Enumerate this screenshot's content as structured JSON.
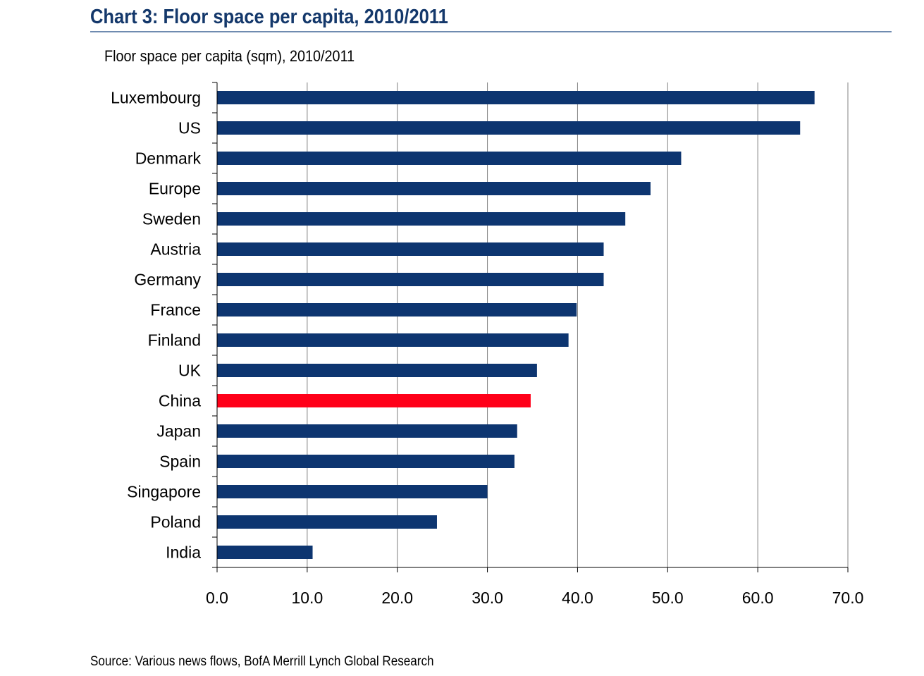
{
  "title": "Chart 3: Floor space per capita, 2010/2011",
  "source": "Source: Various news flows, BofA Merrill Lynch Global Research",
  "colors": {
    "title": "#14386b",
    "bar": "#0d3570",
    "highlight": "#ff0019",
    "rule": "#6f8bb0",
    "grid": "#808080"
  },
  "chart_data": {
    "type": "bar",
    "orientation": "horizontal",
    "title": "Floor space per capita (sqm), 2010/2011",
    "xlabel": "",
    "ylabel": "",
    "xlim": [
      0,
      70
    ],
    "x_ticks": [
      "0.0",
      "10.0",
      "20.0",
      "30.0",
      "40.0",
      "50.0",
      "60.0",
      "70.0"
    ],
    "x_tick_values": [
      0,
      10,
      20,
      30,
      40,
      50,
      60,
      70
    ],
    "grid": "vertical",
    "legend": "none",
    "highlight_category": "China",
    "categories": [
      "Luxembourg",
      "US",
      "Denmark",
      "Europe",
      "Sweden",
      "Austria",
      "Germany",
      "France",
      "Finland",
      "UK",
      "China",
      "Japan",
      "Spain",
      "Singapore",
      "Poland",
      "India"
    ],
    "values": [
      66.3,
      64.7,
      51.5,
      48.1,
      45.3,
      42.9,
      42.9,
      39.9,
      39.0,
      35.5,
      34.8,
      33.3,
      33.0,
      30.0,
      24.4,
      10.6
    ]
  }
}
